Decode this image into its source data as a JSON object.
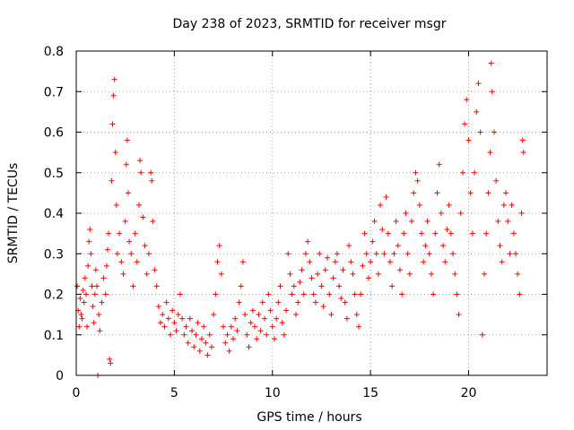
{
  "chart_data": {
    "type": "scatter",
    "title": "Day 238 of 2023, SRMTID for receiver msgr",
    "xlabel": "GPS time / hours",
    "ylabel": "SRMTID / TECUs",
    "xlim": [
      0,
      24
    ],
    "ylim": [
      0,
      0.8
    ],
    "xticks": [
      0,
      5,
      10,
      15,
      20
    ],
    "yticks": [
      0,
      0.1,
      0.2,
      0.3,
      0.4,
      0.5,
      0.6,
      0.7,
      0.8
    ],
    "grid": true,
    "marker": "plus",
    "color": "#ff0000",
    "series": [
      {
        "name": "SRMTID",
        "points": [
          [
            0.05,
            0.22
          ],
          [
            0.1,
            0.16
          ],
          [
            0.15,
            0.12
          ],
          [
            0.2,
            0.19
          ],
          [
            0.25,
            0.15
          ],
          [
            0.3,
            0.14
          ],
          [
            0.35,
            0.21
          ],
          [
            0.4,
            0.18
          ],
          [
            0.45,
            0.24
          ],
          [
            0.5,
            0.2
          ],
          [
            0.55,
            0.12
          ],
          [
            0.6,
            0.27
          ],
          [
            0.65,
            0.33
          ],
          [
            0.7,
            0.36
          ],
          [
            0.75,
            0.3
          ],
          [
            0.8,
            0.22
          ],
          [
            0.85,
            0.17
          ],
          [
            0.9,
            0.13
          ],
          [
            0.95,
            0.2
          ],
          [
            1.0,
            0.26
          ],
          [
            1.05,
            0.22
          ],
          [
            1.1,
            0.0
          ],
          [
            1.15,
            0.15
          ],
          [
            1.2,
            0.11
          ],
          [
            1.3,
            0.18
          ],
          [
            1.4,
            0.24
          ],
          [
            1.5,
            0.2
          ],
          [
            1.55,
            0.27
          ],
          [
            1.6,
            0.31
          ],
          [
            1.65,
            0.35
          ],
          [
            1.7,
            0.04
          ],
          [
            1.75,
            0.03
          ],
          [
            1.8,
            0.48
          ],
          [
            1.85,
            0.62
          ],
          [
            1.9,
            0.69
          ],
          [
            1.95,
            0.73
          ],
          [
            2.0,
            0.55
          ],
          [
            2.05,
            0.42
          ],
          [
            2.1,
            0.3
          ],
          [
            2.2,
            0.35
          ],
          [
            2.3,
            0.28
          ],
          [
            2.4,
            0.25
          ],
          [
            2.5,
            0.38
          ],
          [
            2.55,
            0.52
          ],
          [
            2.6,
            0.58
          ],
          [
            2.65,
            0.45
          ],
          [
            2.7,
            0.33
          ],
          [
            2.8,
            0.3
          ],
          [
            2.9,
            0.22
          ],
          [
            3.0,
            0.35
          ],
          [
            3.1,
            0.28
          ],
          [
            3.2,
            0.42
          ],
          [
            3.25,
            0.53
          ],
          [
            3.3,
            0.5
          ],
          [
            3.4,
            0.39
          ],
          [
            3.5,
            0.32
          ],
          [
            3.6,
            0.25
          ],
          [
            3.7,
            0.3
          ],
          [
            3.8,
            0.5
          ],
          [
            3.85,
            0.48
          ],
          [
            3.9,
            0.38
          ],
          [
            4.0,
            0.26
          ],
          [
            4.1,
            0.22
          ],
          [
            4.2,
            0.17
          ],
          [
            4.3,
            0.13
          ],
          [
            4.4,
            0.15
          ],
          [
            4.5,
            0.12
          ],
          [
            4.6,
            0.18
          ],
          [
            4.7,
            0.14
          ],
          [
            4.8,
            0.1
          ],
          [
            4.9,
            0.16
          ],
          [
            5.0,
            0.13
          ],
          [
            5.1,
            0.11
          ],
          [
            5.2,
            0.15
          ],
          [
            5.3,
            0.2
          ],
          [
            5.4,
            0.14
          ],
          [
            5.5,
            0.1
          ],
          [
            5.6,
            0.12
          ],
          [
            5.7,
            0.08
          ],
          [
            5.8,
            0.14
          ],
          [
            5.9,
            0.11
          ],
          [
            6.0,
            0.07
          ],
          [
            6.1,
            0.1
          ],
          [
            6.2,
            0.13
          ],
          [
            6.3,
            0.06
          ],
          [
            6.4,
            0.09
          ],
          [
            6.5,
            0.12
          ],
          [
            6.6,
            0.08
          ],
          [
            6.7,
            0.05
          ],
          [
            6.8,
            0.1
          ],
          [
            6.9,
            0.07
          ],
          [
            7.0,
            0.15
          ],
          [
            7.1,
            0.2
          ],
          [
            7.2,
            0.28
          ],
          [
            7.3,
            0.32
          ],
          [
            7.4,
            0.25
          ],
          [
            7.5,
            0.12
          ],
          [
            7.6,
            0.08
          ],
          [
            7.7,
            0.1
          ],
          [
            7.8,
            0.06
          ],
          [
            7.9,
            0.12
          ],
          [
            8.0,
            0.09
          ],
          [
            8.1,
            0.14
          ],
          [
            8.2,
            0.11
          ],
          [
            8.3,
            0.18
          ],
          [
            8.4,
            0.22
          ],
          [
            8.5,
            0.28
          ],
          [
            8.6,
            0.15
          ],
          [
            8.7,
            0.1
          ],
          [
            8.8,
            0.07
          ],
          [
            8.9,
            0.13
          ],
          [
            9.0,
            0.16
          ],
          [
            9.1,
            0.12
          ],
          [
            9.2,
            0.09
          ],
          [
            9.3,
            0.15
          ],
          [
            9.4,
            0.11
          ],
          [
            9.5,
            0.18
          ],
          [
            9.6,
            0.14
          ],
          [
            9.7,
            0.1
          ],
          [
            9.8,
            0.2
          ],
          [
            9.9,
            0.16
          ],
          [
            10.0,
            0.12
          ],
          [
            10.1,
            0.09
          ],
          [
            10.2,
            0.14
          ],
          [
            10.3,
            0.18
          ],
          [
            10.4,
            0.22
          ],
          [
            10.5,
            0.13
          ],
          [
            10.6,
            0.1
          ],
          [
            10.7,
            0.16
          ],
          [
            10.8,
            0.3
          ],
          [
            10.9,
            0.25
          ],
          [
            11.0,
            0.2
          ],
          [
            11.1,
            0.22
          ],
          [
            11.2,
            0.15
          ],
          [
            11.3,
            0.18
          ],
          [
            11.4,
            0.23
          ],
          [
            11.5,
            0.26
          ],
          [
            11.6,
            0.2
          ],
          [
            11.7,
            0.3
          ],
          [
            11.8,
            0.33
          ],
          [
            11.9,
            0.28
          ],
          [
            12.0,
            0.24
          ],
          [
            12.1,
            0.2
          ],
          [
            12.2,
            0.18
          ],
          [
            12.3,
            0.25
          ],
          [
            12.4,
            0.3
          ],
          [
            12.5,
            0.22
          ],
          [
            12.6,
            0.17
          ],
          [
            12.7,
            0.26
          ],
          [
            12.8,
            0.29
          ],
          [
            12.9,
            0.2
          ],
          [
            13.0,
            0.15
          ],
          [
            13.1,
            0.24
          ],
          [
            13.2,
            0.28
          ],
          [
            13.3,
            0.3
          ],
          [
            13.4,
            0.22
          ],
          [
            13.5,
            0.19
          ],
          [
            13.6,
            0.26
          ],
          [
            13.7,
            0.18
          ],
          [
            13.8,
            0.14
          ],
          [
            13.9,
            0.32
          ],
          [
            14.0,
            0.28
          ],
          [
            14.1,
            0.25
          ],
          [
            14.2,
            0.2
          ],
          [
            14.3,
            0.15
          ],
          [
            14.4,
            0.12
          ],
          [
            14.5,
            0.2
          ],
          [
            14.6,
            0.27
          ],
          [
            14.7,
            0.35
          ],
          [
            14.8,
            0.3
          ],
          [
            14.9,
            0.24
          ],
          [
            15.0,
            0.28
          ],
          [
            15.1,
            0.33
          ],
          [
            15.2,
            0.38
          ],
          [
            15.3,
            0.3
          ],
          [
            15.4,
            0.25
          ],
          [
            15.5,
            0.42
          ],
          [
            15.6,
            0.36
          ],
          [
            15.7,
            0.3
          ],
          [
            15.8,
            0.44
          ],
          [
            15.9,
            0.35
          ],
          [
            16.0,
            0.28
          ],
          [
            16.1,
            0.22
          ],
          [
            16.2,
            0.3
          ],
          [
            16.3,
            0.38
          ],
          [
            16.4,
            0.32
          ],
          [
            16.5,
            0.26
          ],
          [
            16.6,
            0.2
          ],
          [
            16.7,
            0.35
          ],
          [
            16.8,
            0.4
          ],
          [
            16.9,
            0.3
          ],
          [
            17.0,
            0.25
          ],
          [
            17.1,
            0.38
          ],
          [
            17.2,
            0.45
          ],
          [
            17.3,
            0.5
          ],
          [
            17.4,
            0.48
          ],
          [
            17.5,
            0.42
          ],
          [
            17.6,
            0.35
          ],
          [
            17.7,
            0.28
          ],
          [
            17.8,
            0.32
          ],
          [
            17.9,
            0.38
          ],
          [
            18.0,
            0.3
          ],
          [
            18.1,
            0.25
          ],
          [
            18.2,
            0.2
          ],
          [
            18.3,
            0.35
          ],
          [
            18.4,
            0.45
          ],
          [
            18.5,
            0.52
          ],
          [
            18.6,
            0.4
          ],
          [
            18.7,
            0.32
          ],
          [
            18.8,
            0.28
          ],
          [
            18.9,
            0.36
          ],
          [
            19.0,
            0.42
          ],
          [
            19.1,
            0.35
          ],
          [
            19.2,
            0.3
          ],
          [
            19.3,
            0.25
          ],
          [
            19.4,
            0.2
          ],
          [
            19.5,
            0.15
          ],
          [
            19.6,
            0.4
          ],
          [
            19.7,
            0.5
          ],
          [
            19.8,
            0.62
          ],
          [
            19.9,
            0.68
          ],
          [
            20.0,
            0.58
          ],
          [
            20.1,
            0.45
          ],
          [
            20.2,
            0.35
          ],
          [
            20.3,
            0.5
          ],
          [
            20.4,
            0.65
          ],
          [
            20.5,
            0.72
          ],
          [
            20.6,
            0.6
          ],
          [
            20.7,
            0.1
          ],
          [
            20.8,
            0.25
          ],
          [
            20.9,
            0.35
          ],
          [
            21.0,
            0.45
          ],
          [
            21.1,
            0.55
          ],
          [
            21.15,
            0.77
          ],
          [
            21.2,
            0.7
          ],
          [
            21.3,
            0.6
          ],
          [
            21.4,
            0.48
          ],
          [
            21.5,
            0.38
          ],
          [
            21.6,
            0.32
          ],
          [
            21.7,
            0.28
          ],
          [
            21.8,
            0.42
          ],
          [
            21.9,
            0.45
          ],
          [
            22.0,
            0.38
          ],
          [
            22.1,
            0.3
          ],
          [
            22.2,
            0.42
          ],
          [
            22.3,
            0.35
          ],
          [
            22.4,
            0.3
          ],
          [
            22.5,
            0.25
          ],
          [
            22.6,
            0.2
          ],
          [
            22.7,
            0.4
          ],
          [
            22.75,
            0.58
          ],
          [
            22.8,
            0.55
          ]
        ]
      }
    ]
  }
}
